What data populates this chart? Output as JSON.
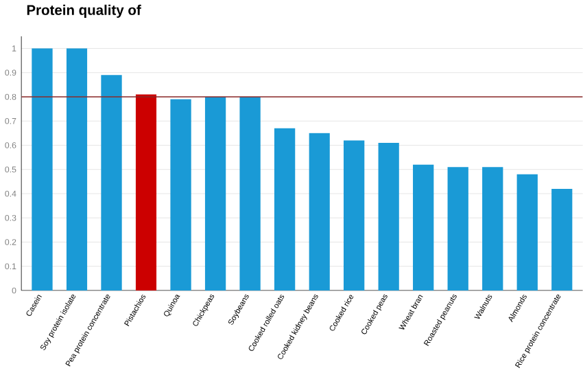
{
  "chart_data": {
    "type": "bar",
    "title": "Protein quality of",
    "categories": [
      "Casein",
      "Soy protein isolate",
      "Pea protein concentrate",
      "Pistachios",
      "Quinoa",
      "Chickpeas",
      "Soybeans",
      "Cooked rolled oats",
      "Cooked kidney beans",
      "Cooked rice",
      "Cooked peas",
      "Wheat bran",
      "Roasted peanuts",
      "Walnuts",
      "Almonds",
      "Rice protein concentrate"
    ],
    "values": [
      1.0,
      1.0,
      0.89,
      0.81,
      0.79,
      0.8,
      0.8,
      0.67,
      0.65,
      0.62,
      0.61,
      0.52,
      0.51,
      0.51,
      0.48,
      0.42
    ],
    "colors": [
      "#1a9ad6",
      "#1a9ad6",
      "#1a9ad6",
      "#cc0000",
      "#1a9ad6",
      "#1a9ad6",
      "#1a9ad6",
      "#1a9ad6",
      "#1a9ad6",
      "#1a9ad6",
      "#1a9ad6",
      "#1a9ad6",
      "#1a9ad6",
      "#1a9ad6",
      "#1a9ad6",
      "#1a9ad6"
    ],
    "ylim": [
      0,
      1.05
    ],
    "yticks": [
      0,
      0.1,
      0.2,
      0.3,
      0.4,
      0.5,
      0.6,
      0.7,
      0.8,
      0.9,
      1
    ],
    "ref_lines": [
      {
        "axis": "y",
        "value": 0.8,
        "color": "#8b2a2a"
      }
    ],
    "grid": "y"
  }
}
